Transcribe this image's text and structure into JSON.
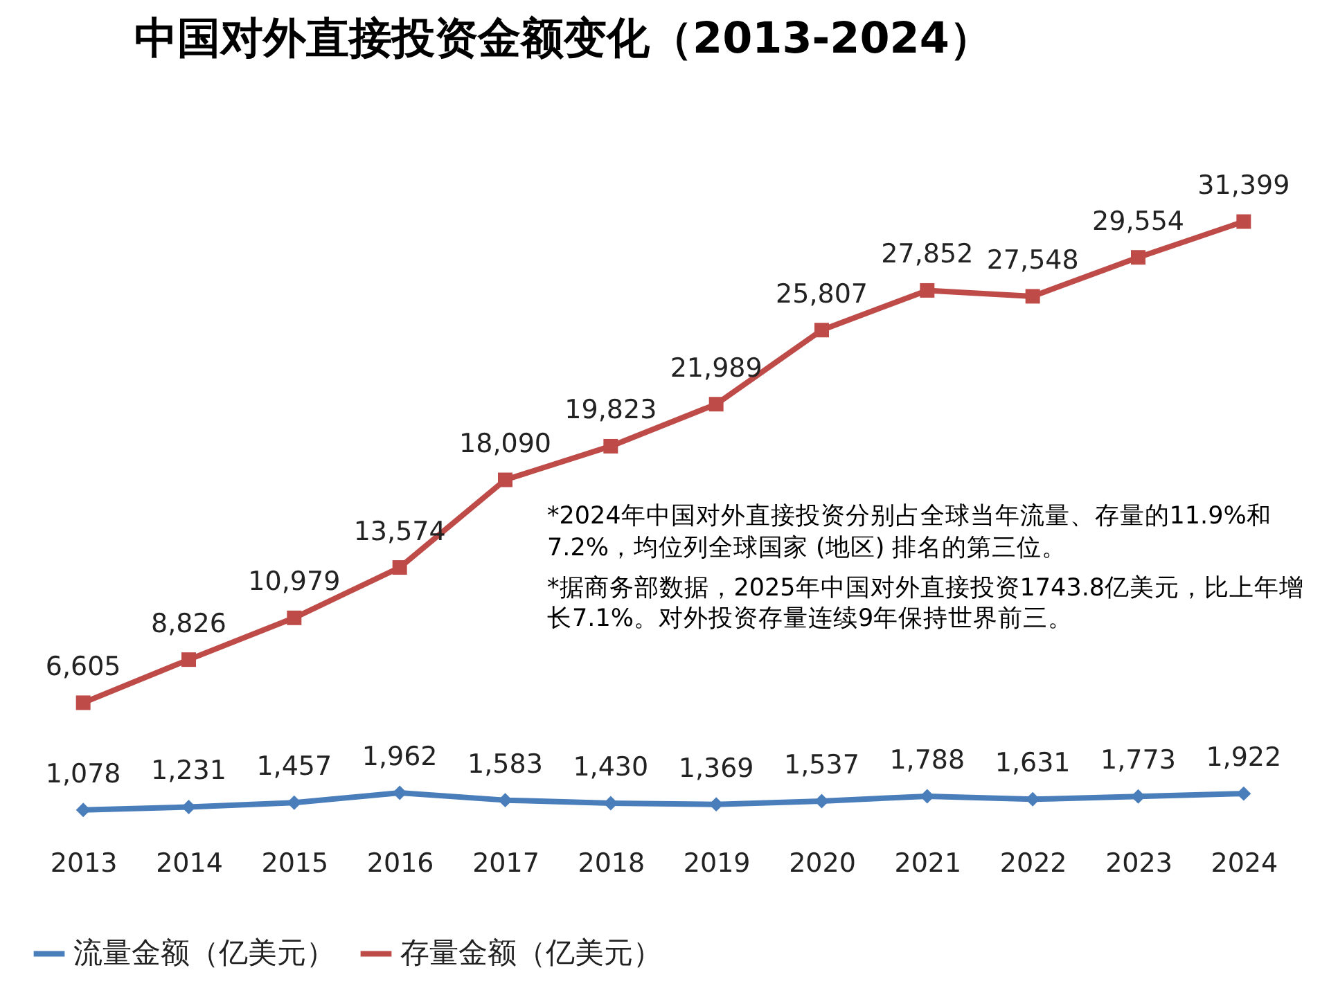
{
  "chart_data": {
    "type": "line",
    "title": "中国对外直接投资金额变化（2013-2024）",
    "categories": [
      "2013",
      "2014",
      "2015",
      "2016",
      "2017",
      "2018",
      "2019",
      "2020",
      "2021",
      "2022",
      "2023",
      "2024"
    ],
    "series": [
      {
        "name": "流量金额（亿美元）",
        "color": "#4a7ebb",
        "marker": "diamond",
        "values": [
          1078,
          1231,
          1457,
          1962,
          1583,
          1430,
          1369,
          1537,
          1788,
          1631,
          1773,
          1922
        ],
        "value_labels": [
          "1,078",
          "1,231",
          "1,457",
          "1,962",
          "1,583",
          "1,430",
          "1,369",
          "1,537",
          "1,788",
          "1,631",
          "1,773",
          "1,922"
        ]
      },
      {
        "name": "存量金额（亿美元）",
        "color": "#be4b48",
        "marker": "square",
        "values": [
          6605,
          8826,
          10979,
          13574,
          18090,
          19823,
          21989,
          25807,
          27852,
          27548,
          29554,
          31399
        ],
        "value_labels": [
          "6,605",
          "8,826",
          "10,979",
          "13,574",
          "18,090",
          "19,823",
          "21,989",
          "25,807",
          "27,852",
          "27,548",
          "29,554",
          "31,399"
        ]
      }
    ],
    "legend": "bottom",
    "grid": false,
    "line_style": "solid",
    "tick_labels": "x",
    "annotations": [
      "*2024年中国对外直接投资分别占全球当年流量、存量的11.9%和7.2%，均位列全球国家 (地区) 排名的第三位。",
      "*据商务部数据，2025年中国对外直接投资1743.8亿美元，比上年增长7.1%。对外投资存量连续9年保持世界前三。"
    ]
  }
}
